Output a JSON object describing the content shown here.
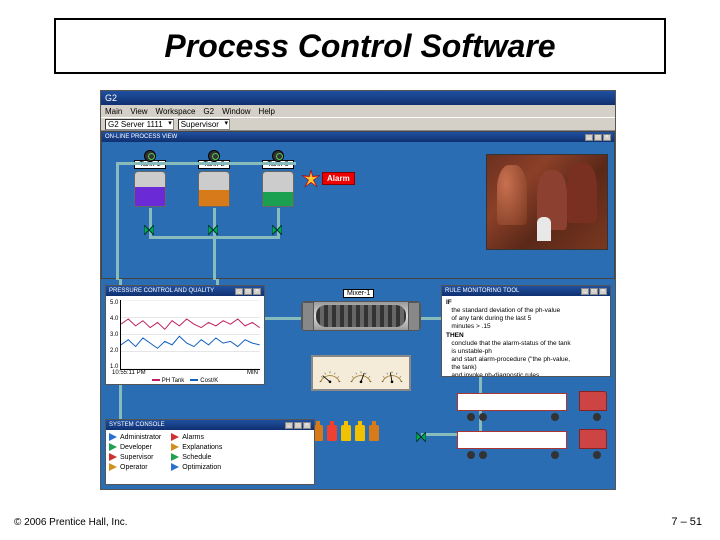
{
  "slide": {
    "title": "Process Control Software",
    "copyright": "© 2006 Prentice Hall, Inc.",
    "page_ref": "7 – 51"
  },
  "app": {
    "window_title": "G2",
    "menubar": [
      "Main",
      "View",
      "Workspace",
      "G2",
      "Window",
      "Help"
    ],
    "toolbar_dropdown1": "G2 Server 1111",
    "toolbar_dropdown2": "Supervisor"
  },
  "process_view": {
    "title": "ON-LINE PROCESS VIEW",
    "tanks": [
      {
        "label": "Tank-1",
        "fill_color": "#6a2bd6",
        "fill_pct": 55
      },
      {
        "label": "Tank-2",
        "fill_color": "#d67a1a",
        "fill_pct": 48
      },
      {
        "label": "Tank-3",
        "fill_color": "#1aa050",
        "fill_pct": 42
      }
    ],
    "alarm_label": "Alarm",
    "pipe_color": "#7fbdbd"
  },
  "chart": {
    "title": "PRESSURE CONTROL AND QUALITY",
    "y_ticks": [
      "5.0",
      "4.0",
      "3.0",
      "2.0",
      "1.0"
    ],
    "x_label_time": "10:55:11 PM",
    "x_label_unit": "MIN",
    "legend": [
      {
        "label": "PH Tank",
        "color": "#c02060"
      },
      {
        "label": "Cost/K",
        "color": "#1060c0"
      }
    ],
    "series": [
      {
        "color": "#c02060",
        "points": [
          3.6,
          3.9,
          3.5,
          3.8,
          3.4,
          3.7,
          3.3,
          3.8,
          3.5,
          3.9,
          3.6,
          3.4,
          3.7,
          3.5,
          3.8,
          3.6,
          3.9,
          3.5,
          3.7,
          3.4
        ]
      },
      {
        "color": "#1060c0",
        "points": [
          2.4,
          2.7,
          2.3,
          2.8,
          2.5,
          2.2,
          2.6,
          2.4,
          2.9,
          2.5,
          2.3,
          2.7,
          2.4,
          2.8,
          2.5,
          2.6,
          2.3,
          2.7,
          2.5,
          2.4
        ]
      }
    ],
    "y_min": 1.0,
    "y_max": 5.0
  },
  "mixer": {
    "label": "Mixer-1"
  },
  "gauges": {
    "needle_angles": [
      -50,
      20,
      -10
    ],
    "scale_color": "#a08030"
  },
  "bottles_colors": [
    "#f2c200",
    "#f2c200",
    "#d67a1a",
    "#f24030",
    "#f2c200",
    "#f2c200",
    "#d67a1a"
  ],
  "rule_monitor": {
    "title": "RULE MONITORING TOOL",
    "lines": [
      "IF",
      "   the standard deviation of the ph-value",
      "   of any tank during the last 5",
      "   minutes > .15",
      "THEN",
      "   conclude that the alarm-status of the tank",
      "   is unstable-ph",
      "   and start alarm-procedure (\"the ph-value,",
      "   the tank)",
      "   and invoke ph-diagnostic rules"
    ]
  },
  "console": {
    "title": "SYSTEM CONSOLE",
    "col1": [
      {
        "label": "Administrator",
        "color": "#2a70d0"
      },
      {
        "label": "Developer",
        "color": "#20a050"
      },
      {
        "label": "Supervisor",
        "color": "#d03030"
      },
      {
        "label": "Operator",
        "color": "#d09020"
      }
    ],
    "col2": [
      {
        "label": "Alarms",
        "color": "#d03030"
      },
      {
        "label": "Explanations",
        "color": "#d09020"
      },
      {
        "label": "Schedule",
        "color": "#20a050"
      },
      {
        "label": "Optimization",
        "color": "#2a70d0"
      }
    ]
  },
  "colors": {
    "app_bg": "#2b6db3",
    "titlebar_from": "#2050a0",
    "titlebar_to": "#103070",
    "alarm_red": "#e00000"
  }
}
